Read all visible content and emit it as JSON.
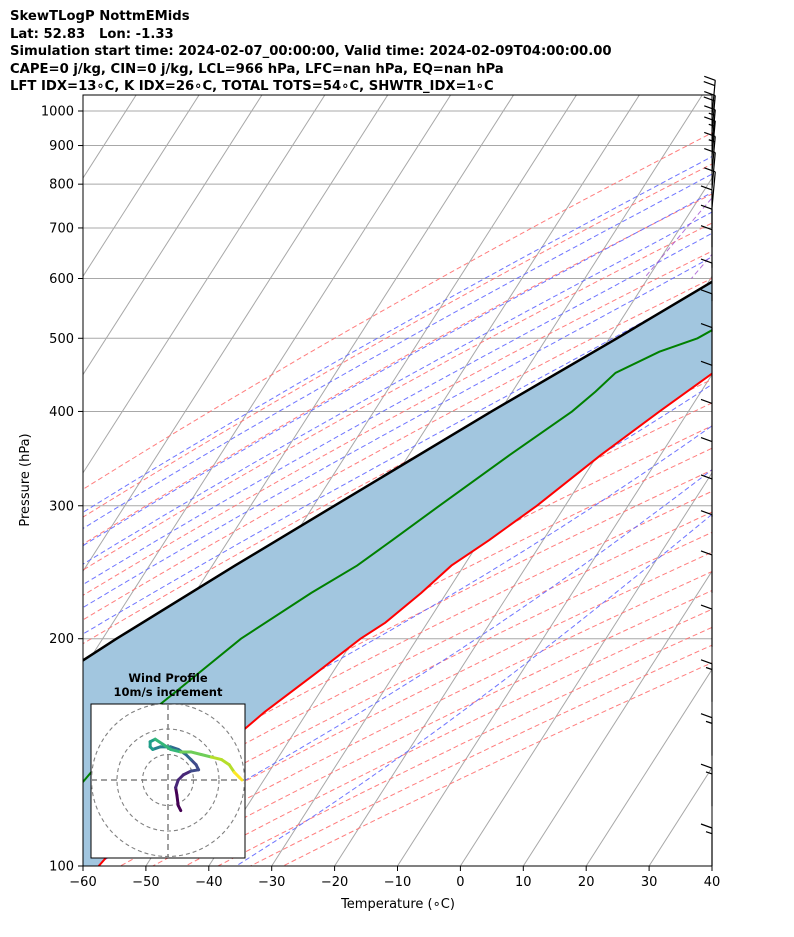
{
  "header": {
    "line1": "SkewTLogP NottmEMids",
    "line2": "Lat: 52.83   Lon: -1.33",
    "line3": "Simulation start time: 2024-02-07_00:00:00, Valid time: 2024-02-09T04:00:00.00",
    "line4": "CAPE=0 j/kg, CIN=0 j/kg, LCL=966 hPa, LFC=nan hPa, EQ=nan hPa",
    "line5": "LFT IDX=13∘C, K IDX=26∘C, TOTAL TOTS=54∘C, SHWTR_IDX=1∘C"
  },
  "chart_data": [
    {
      "type": "skewt",
      "xlabel": "Temperature (∘C)",
      "ylabel": "Pressure (hPa)",
      "xlim": [
        -60,
        40
      ],
      "ylim": [
        1050,
        100
      ],
      "y_scale": "log",
      "x_ticks": [
        -60,
        -50,
        -40,
        -30,
        -20,
        -10,
        0,
        10,
        20,
        30,
        40
      ],
      "y_ticks": [
        100,
        200,
        300,
        400,
        500,
        600,
        700,
        800,
        900,
        1000
      ],
      "grid": true,
      "colors": {
        "temperature": "#ff0000",
        "dewpoint": "#008000",
        "parcel": "#000000",
        "cape_fill": "#a2c6df",
        "dry_adiabats": "#ff6f6f",
        "moist_adiabats": "#5f66ff",
        "mixing_ratio": "#a04fcf",
        "isotherms": "#a8a8a8",
        "wind_barbs": "#000000"
      },
      "series": [
        {
          "role": "temperature",
          "points": [
            [
              966,
              10.2
            ],
            [
              925,
              9.6
            ],
            [
              875,
              9.5
            ],
            [
              850,
              9.8
            ],
            [
              800,
              10
            ],
            [
              750,
              8.5
            ],
            [
              700,
              5.8
            ],
            [
              650,
              2.7
            ],
            [
              600,
              -0.5
            ],
            [
              550,
              -3.6
            ],
            [
              500,
              -6.5
            ],
            [
              450,
              -10
            ],
            [
              400,
              -14.6
            ],
            [
              350,
              -19.5
            ],
            [
              300,
              -24.5
            ],
            [
              270,
              -28.6
            ],
            [
              250,
              -32
            ],
            [
              230,
              -34
            ],
            [
              210,
              -36.7
            ],
            [
              200,
              -39
            ],
            [
              180,
              -42.6
            ],
            [
              160,
              -46.8
            ],
            [
              140,
              -50.5
            ],
            [
              125,
              -53.8
            ],
            [
              110,
              -56.3
            ],
            [
              100,
              -57.5
            ]
          ]
        },
        {
          "role": "dewpoint",
          "points": [
            [
              966,
              4.5
            ],
            [
              925,
              8.5
            ],
            [
              900,
              9.5
            ],
            [
              870,
              9.2
            ],
            [
              830,
              8.3
            ],
            [
              780,
              6.8
            ],
            [
              700,
              1.5
            ],
            [
              650,
              -2.7
            ],
            [
              600,
              -6.6
            ],
            [
              550,
              -10.3
            ],
            [
              500,
              -16
            ],
            [
              480,
              -20.7
            ],
            [
              450,
              -25.5
            ],
            [
              425,
              -26.8
            ],
            [
              400,
              -28.5
            ],
            [
              350,
              -34
            ],
            [
              300,
              -40
            ],
            [
              270,
              -44
            ],
            [
              250,
              -47
            ],
            [
              230,
              -51.5
            ],
            [
              200,
              -58
            ],
            [
              170,
              -63
            ],
            [
              150,
              -67
            ],
            [
              130,
              -68.5
            ],
            [
              115,
              -70
            ],
            [
              100,
              -72
            ]
          ]
        },
        {
          "role": "parcel",
          "points": [
            [
              966,
              4.5
            ],
            [
              900,
              1.6
            ],
            [
              850,
              -0.8
            ],
            [
              800,
              -3.6
            ],
            [
              700,
              -10.6
            ],
            [
              600,
              -18.9
            ],
            [
              500,
              -28.8
            ],
            [
              400,
              -41.3
            ],
            [
              300,
              -56.7
            ],
            [
              250,
              -66.4
            ],
            [
              200,
              -77.8
            ],
            [
              150,
              -91.4
            ],
            [
              100,
              -109
            ]
          ]
        }
      ],
      "wind_barbs": [
        {
          "p": 985,
          "speed": 20
        },
        {
          "p": 940,
          "speed": 20
        },
        {
          "p": 900,
          "speed": 15
        },
        {
          "p": 870,
          "speed": 15
        },
        {
          "p": 830,
          "speed": 15
        },
        {
          "p": 790,
          "speed": 10
        },
        {
          "p": 745,
          "speed": 10
        },
        {
          "p": 700,
          "speed": 10
        },
        {
          "p": 660,
          "speed": 10
        },
        {
          "p": 620,
          "speed": 10
        },
        {
          "p": 560,
          "speed": 10
        },
        {
          "p": 510,
          "speed": 10
        },
        {
          "p": 460,
          "speed": 10
        },
        {
          "p": 410,
          "speed": 10
        },
        {
          "p": 365,
          "speed": 10
        },
        {
          "p": 325,
          "speed": 10
        },
        {
          "p": 290,
          "speed": 10
        },
        {
          "p": 260,
          "speed": 10
        },
        {
          "p": 230,
          "speed": 10
        },
        {
          "p": 195,
          "speed": 10
        },
        {
          "p": 165,
          "speed": 15
        },
        {
          "p": 140,
          "speed": 15
        },
        {
          "p": 120,
          "speed": 15
        },
        {
          "p": 100,
          "speed": 15
        }
      ]
    },
    {
      "type": "hodograph",
      "title": "Wind Profile",
      "subtitle": "10m/s increment",
      "ring_increment": 10,
      "rings": [
        10,
        20,
        30
      ],
      "points": [
        [
          5,
          -12
        ],
        [
          4,
          -10
        ],
        [
          3.5,
          -6
        ],
        [
          3,
          -3
        ],
        [
          4,
          0
        ],
        [
          6,
          2
        ],
        [
          9,
          3.5
        ],
        [
          12,
          4
        ],
        [
          11,
          6
        ],
        [
          9,
          8
        ],
        [
          7,
          10
        ],
        [
          4,
          12
        ],
        [
          1,
          13
        ],
        [
          -3,
          13
        ],
        [
          -6,
          12
        ],
        [
          -7,
          13
        ],
        [
          -7,
          15
        ],
        [
          -5,
          16
        ],
        [
          -2,
          14
        ],
        [
          1,
          12
        ],
        [
          5,
          11
        ],
        [
          9,
          11
        ],
        [
          13,
          10
        ],
        [
          17,
          9
        ],
        [
          21,
          8
        ],
        [
          24,
          6
        ],
        [
          26,
          3
        ],
        [
          28,
          1
        ],
        [
          29,
          0
        ]
      ]
    }
  ]
}
